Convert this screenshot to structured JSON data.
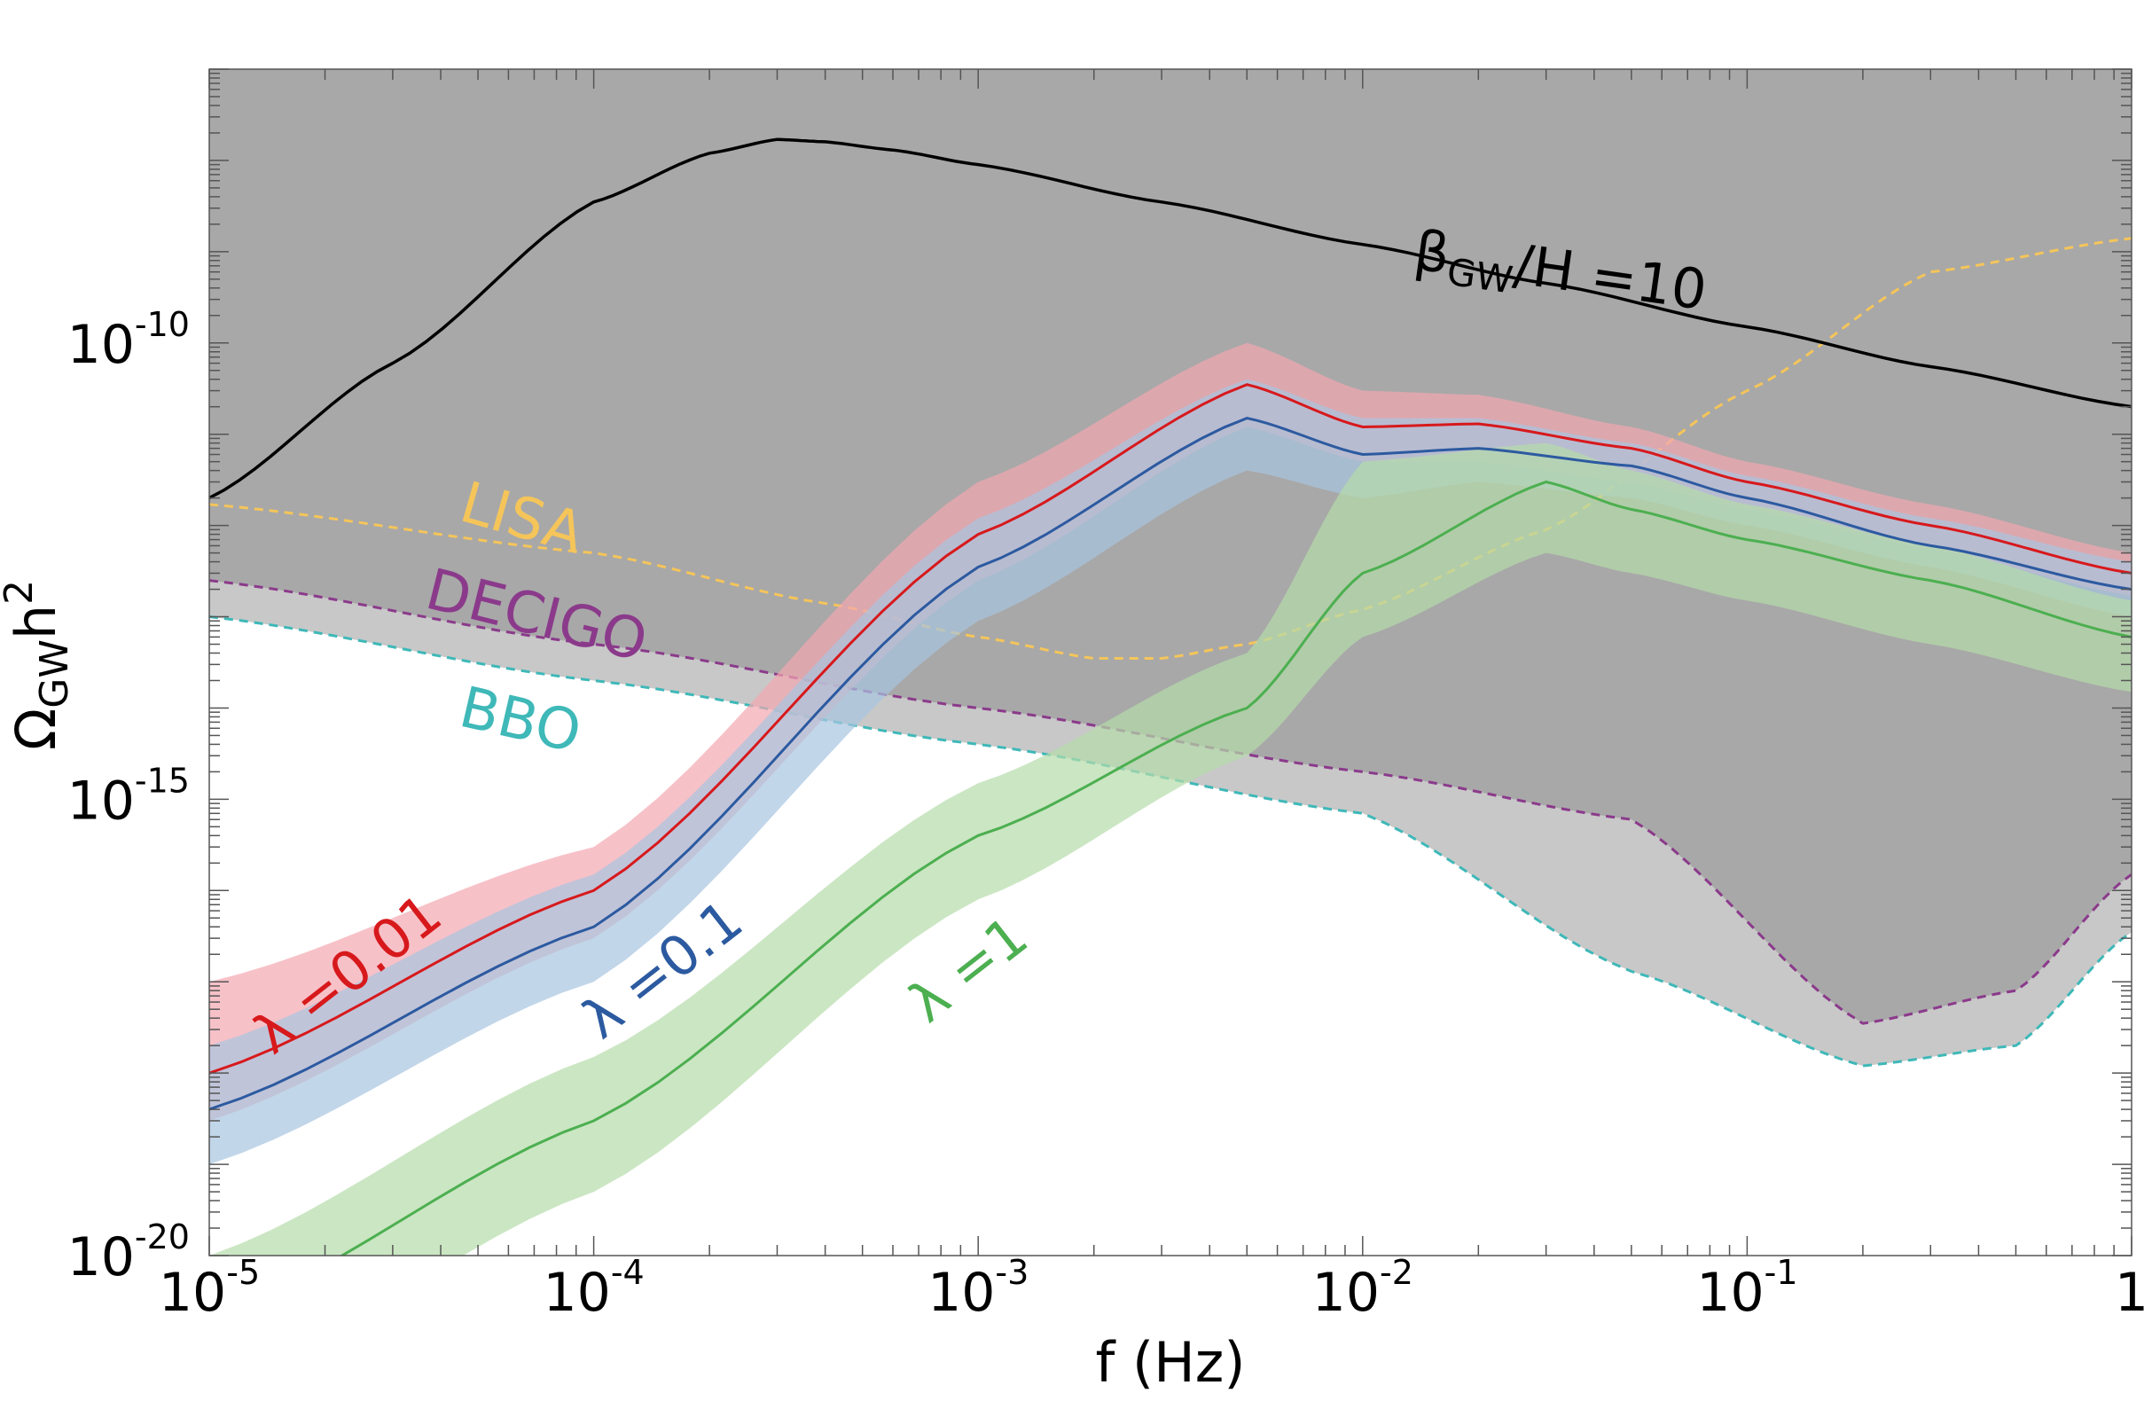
{
  "chart_data": {
    "type": "line",
    "xlabel": "f (Hz)",
    "ylabel": "Ω<sub>GW</sub>h<sup>2</sup>",
    "ylabel_main": "Ω",
    "ylabel_sub": "GW",
    "ylabel_tail": "h",
    "ylabel_sup": "2",
    "x_scale": "log",
    "y_scale": "log",
    "xlim": [
      1e-05,
      1
    ],
    "ylim": [
      1e-20,
      1e-07
    ],
    "x_ticks": [
      {
        "base": "10",
        "exp": "-5",
        "value": 1e-05
      },
      {
        "base": "10",
        "exp": "-4",
        "value": 0.0001
      },
      {
        "base": "10",
        "exp": "-3",
        "value": 0.001
      },
      {
        "base": "10",
        "exp": "-2",
        "value": 0.01
      },
      {
        "base": "10",
        "exp": "-1",
        "value": 0.1
      },
      {
        "base": "1",
        "exp": "",
        "value": 1
      }
    ],
    "y_ticks": [
      {
        "base": "10",
        "exp": "-10",
        "value": 1e-10
      },
      {
        "base": "10",
        "exp": "-15",
        "value": 1e-15
      },
      {
        "base": "10",
        "exp": "-20",
        "value": 1e-20
      }
    ],
    "grid": false,
    "legend": "none",
    "detectors": [
      {
        "name": "LISA",
        "color": "#f5c55a",
        "fill": "#a8a8a8",
        "x": [
          1e-05,
          0.0001,
          0.0004,
          0.001,
          0.002,
          0.003,
          0.005,
          0.01,
          0.03,
          0.1,
          0.3,
          1
        ],
        "y": [
          1.7e-12,
          5e-13,
          1.4e-13,
          6e-14,
          3.5e-14,
          3.5e-14,
          5e-14,
          1.2e-13,
          9e-13,
          3e-11,
          6e-10,
          1.4e-09
        ]
      },
      {
        "name": "DECIGO",
        "color": "#8b3a8b",
        "fill": "#a8a8a8",
        "x": [
          1e-05,
          0.0001,
          0.001,
          0.01,
          0.05,
          0.2,
          0.5,
          1
        ],
        "y": [
          2.5e-13,
          5e-14,
          1e-14,
          2e-15,
          6e-16,
          3.5e-18,
          8e-18,
          1.5e-16
        ]
      },
      {
        "name": "BBO",
        "color": "#3fb8b8",
        "fill": "#c8c8c8",
        "x": [
          1e-05,
          0.0001,
          0.001,
          0.01,
          0.05,
          0.2,
          0.5,
          1
        ],
        "y": [
          1e-13,
          2e-14,
          4e-15,
          7e-16,
          1.3e-17,
          1.2e-18,
          2e-18,
          3.5e-17
        ]
      }
    ],
    "series": [
      {
        "name": "β<sub>GW</sub>/H =10",
        "label_main": "β",
        "label_sub": "GW",
        "label_tail": "/H =10",
        "color": "#000000",
        "x": [
          1e-05,
          3e-05,
          0.0001,
          0.0002,
          0.0003,
          0.0004,
          0.0006,
          0.001,
          0.003,
          0.01,
          0.03,
          0.1,
          0.3,
          1
        ],
        "y": [
          2e-12,
          6e-11,
          3.5e-09,
          1.2e-08,
          1.7e-08,
          1.6e-08,
          1.3e-08,
          9e-09,
          3.5e-09,
          1.2e-09,
          4.5e-10,
          1.5e-10,
          5.5e-11,
          2e-11
        ]
      },
      {
        "name": "λ =0.01",
        "color": "#d7191c",
        "band": "#f4a6b0",
        "x": [
          1e-05,
          0.0001,
          0.001,
          0.005,
          0.01,
          0.02,
          0.05,
          0.1,
          0.3,
          1
        ],
        "y": [
          1e-18,
          1e-16,
          8e-13,
          3.5e-11,
          1.2e-11,
          1.3e-11,
          7e-12,
          3e-12,
          1e-12,
          3e-13
        ],
        "band_upper": [
          1e-17,
          3e-16,
          3e-12,
          1e-10,
          3e-11,
          2.7e-11,
          1.2e-11,
          5e-12,
          1.7e-12,
          5e-13
        ],
        "band_lower": [
          3e-19,
          3e-17,
          2.5e-13,
          1.2e-11,
          5e-12,
          5e-12,
          3e-12,
          1.5e-12,
          5.5e-13,
          1.7e-13
        ]
      },
      {
        "name": "λ =0.1",
        "color": "#2c5aa0",
        "band": "#a8c4e0",
        "x": [
          1e-05,
          0.0001,
          0.001,
          0.005,
          0.01,
          0.02,
          0.05,
          0.1,
          0.3,
          1
        ],
        "y": [
          4e-19,
          4e-17,
          3.5e-13,
          1.5e-11,
          6e-12,
          7e-12,
          4.5e-12,
          2e-12,
          6e-13,
          2e-13
        ],
        "band_upper": [
          2e-18,
          1.5e-16,
          1.2e-12,
          4e-11,
          1.5e-11,
          1.5e-11,
          8e-12,
          3.5e-12,
          1.2e-12,
          4e-13
        ],
        "band_lower": [
          1e-19,
          1e-17,
          9e-14,
          4e-12,
          2e-12,
          3e-12,
          2e-12,
          1e-12,
          3.5e-13,
          1e-13
        ]
      },
      {
        "name": "λ =1",
        "color": "#4caf50",
        "band": "#b5dcaa",
        "x": [
          1e-05,
          0.0001,
          0.001,
          0.005,
          0.01,
          0.03,
          0.05,
          0.1,
          0.3,
          1
        ],
        "y": [
          2e-21,
          3e-19,
          4e-16,
          1e-14,
          3e-13,
          3e-12,
          1.5e-12,
          7e-13,
          2.5e-13,
          6e-14
        ],
        "band_upper": [
          1e-20,
          1.5e-18,
          1.5e-15,
          4e-14,
          5e-12,
          8e-12,
          4e-12,
          1.7e-12,
          6e-13,
          1.5e-13
        ],
        "band_lower": [
          3e-22,
          5e-20,
          8e-17,
          3e-15,
          6e-14,
          5e-13,
          3e-13,
          1.5e-13,
          5e-14,
          1.5e-14
        ]
      }
    ]
  }
}
